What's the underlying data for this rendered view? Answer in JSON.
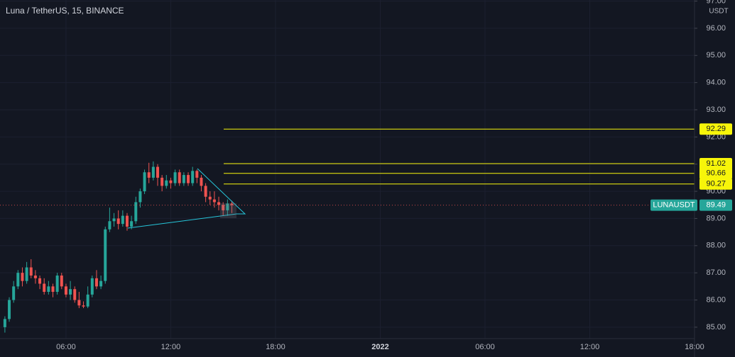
{
  "chart_data": {
    "type": "candlestick",
    "title": "Luna / TetherUS, 15, BINANCE",
    "y_unit": "USDT",
    "x": [
      2.5,
      2.75,
      3,
      3.25,
      3.5,
      3.75,
      4,
      4.25,
      4.5,
      4.75,
      5,
      5.25,
      5.5,
      5.75,
      6,
      6.25,
      6.5,
      6.75,
      7,
      7.25,
      7.5,
      7.75,
      8,
      8.25,
      8.5,
      8.75,
      9,
      9.25,
      9.5,
      9.75,
      10,
      10.25,
      10.5,
      10.75,
      11,
      11.25,
      11.5,
      11.75,
      12,
      12.25,
      12.5,
      12.75,
      13,
      13.25,
      13.5,
      13.75,
      14,
      14.25,
      14.5,
      14.75,
      15,
      15.25,
      15.5
    ],
    "open": [
      85.0,
      85.3,
      86.0,
      86.5,
      87.0,
      86.7,
      87.2,
      86.9,
      86.8,
      86.6,
      86.3,
      86.5,
      86.3,
      86.9,
      86.5,
      86.2,
      86.4,
      86.0,
      85.8,
      85.76,
      86.2,
      86.8,
      86.5,
      86.7,
      88.6,
      88.9,
      89.0,
      88.8,
      89.1,
      88.7,
      88.9,
      89.6,
      90.0,
      90.7,
      90.5,
      90.9,
      90.5,
      90.2,
      90.4,
      90.3,
      90.7,
      90.3,
      90.6,
      90.3,
      90.75,
      90.5,
      90.2,
      89.8,
      89.7,
      89.6,
      89.5,
      89.3,
      89.55
    ],
    "high": [
      85.4,
      86.1,
      86.7,
      87.1,
      87.2,
      87.4,
      87.5,
      87.1,
      86.9,
      86.8,
      86.7,
      86.6,
      87.0,
      87.0,
      86.6,
      86.7,
      86.5,
      86.3,
      85.95,
      86.5,
      86.9,
      87.1,
      86.9,
      88.7,
      89.4,
      89.2,
      89.3,
      89.3,
      89.2,
      89.1,
      89.8,
      90.1,
      90.8,
      91.05,
      91.1,
      91.0,
      90.6,
      90.6,
      90.5,
      90.8,
      90.8,
      90.7,
      90.7,
      90.9,
      90.8,
      90.6,
      90.3,
      90.0,
      90.0,
      89.8,
      89.6,
      89.7,
      89.65
    ],
    "low": [
      84.8,
      85.2,
      85.9,
      86.4,
      86.5,
      86.6,
      86.8,
      86.6,
      86.4,
      86.2,
      86.2,
      86.1,
      86.2,
      86.4,
      86.1,
      86.0,
      85.9,
      85.7,
      85.7,
      85.7,
      86.1,
      86.4,
      86.4,
      86.6,
      88.5,
      88.7,
      88.6,
      88.7,
      88.55,
      88.6,
      88.8,
      89.4,
      89.9,
      90.3,
      90.4,
      90.2,
      90.0,
      90.1,
      90.1,
      90.2,
      90.2,
      90.2,
      90.2,
      90.2,
      90.3,
      90.0,
      89.6,
      89.5,
      89.4,
      89.3,
      89.1,
      89.1,
      89.2
    ],
    "close": [
      85.3,
      86.0,
      86.5,
      87.0,
      86.7,
      87.2,
      86.9,
      86.8,
      86.6,
      86.3,
      86.5,
      86.3,
      86.9,
      86.5,
      86.2,
      86.4,
      86.0,
      85.8,
      85.76,
      86.2,
      86.8,
      86.5,
      86.7,
      88.6,
      88.9,
      89.0,
      88.8,
      89.1,
      88.7,
      88.9,
      89.6,
      90.0,
      90.7,
      90.5,
      90.9,
      90.5,
      90.2,
      90.4,
      90.3,
      90.7,
      90.3,
      90.6,
      90.3,
      90.75,
      90.5,
      90.2,
      89.8,
      89.7,
      89.6,
      89.5,
      89.3,
      89.55,
      89.49
    ],
    "up_color": "#26a69a",
    "down_color": "#ef5350",
    "levels": [
      92.29,
      91.02,
      90.66,
      90.27
    ],
    "level_color": "#f7f50a",
    "last_price_label": "LUNAUSDT",
    "last_price": 89.49,
    "xlim": [
      2.22,
      42
    ],
    "xticks": [
      {
        "value": 6,
        "label": "06:00"
      },
      {
        "value": 12,
        "label": "12:00"
      },
      {
        "value": 18,
        "label": "18:00"
      },
      {
        "value": 24,
        "label": "2022"
      },
      {
        "value": 30,
        "label": "06:00"
      },
      {
        "value": 36,
        "label": "12:00"
      },
      {
        "value": 42,
        "label": "18:00"
      }
    ],
    "ylim": [
      84.58,
      97.04
    ],
    "yticks": [
      {
        "value": 85,
        "label": "85.00"
      },
      {
        "value": 86,
        "label": "86.00"
      },
      {
        "value": 87,
        "label": "87.00"
      },
      {
        "value": 88,
        "label": "88.00"
      },
      {
        "value": 89,
        "label": "89.00"
      },
      {
        "value": 90,
        "label": "90.00"
      },
      {
        "value": 91,
        "label": "91.00"
      },
      {
        "value": 92,
        "label": "92.00"
      },
      {
        "value": 93,
        "label": "93.00"
      },
      {
        "value": 94,
        "label": "94.00"
      },
      {
        "value": 95,
        "label": "95.00"
      },
      {
        "value": 96,
        "label": "96.00"
      },
      {
        "value": 97,
        "label": "97.00"
      }
    ],
    "grid": true
  }
}
